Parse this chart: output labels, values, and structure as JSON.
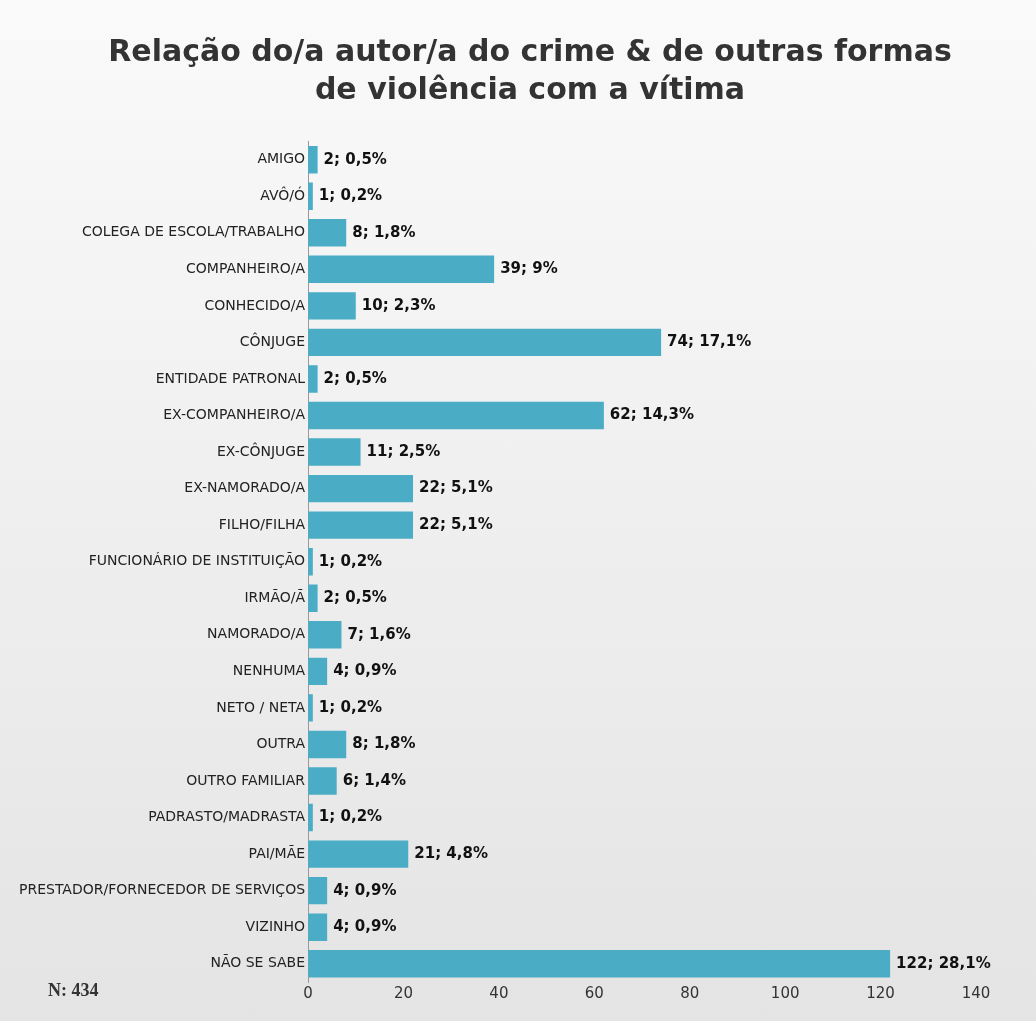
{
  "chart_data": {
    "type": "bar",
    "orientation": "horizontal",
    "title": "Relação do/a autor/a do crime & de outras formas de violência com a vítima",
    "categories": [
      "AMIGO",
      "AVÔ/Ó",
      "COLEGA DE ESCOLA/TRABALHO",
      "COMPANHEIRO/A",
      "CONHECIDO/A",
      "CÔNJUGE",
      "ENTIDADE PATRONAL",
      "EX-COMPANHEIRO/A",
      "EX-CÔNJUGE",
      "EX-NAMORADO/A",
      "FILHO/FILHA",
      "FUNCIONÁRIO DE INSTITUIÇÃO",
      "IRMÃO/Ã",
      "NAMORADO/A",
      "NENHUMA",
      "NETO / NETA",
      "OUTRA",
      "OUTRO FAMILIAR",
      "PADRASTO/MADRASTA",
      "PAI/MÃE",
      "PRESTADOR/FORNECEDOR DE SERVIÇOS",
      "VIZINHO",
      "NÃO SE SABE"
    ],
    "values": [
      2,
      1,
      8,
      39,
      10,
      74,
      2,
      62,
      11,
      22,
      22,
      1,
      2,
      7,
      4,
      1,
      8,
      6,
      1,
      21,
      4,
      4,
      122
    ],
    "value_labels": [
      "2; 0,5%",
      "1; 0,2%",
      "8; 1,8%",
      "39; 9%",
      "10; 2,3%",
      "74; 17,1%",
      "2; 0,5%",
      "62; 14,3%",
      "11; 2,5%",
      "22; 5,1%",
      "22; 5,1%",
      "1; 0,2%",
      "2; 0,5%",
      "7; 1,6%",
      "4; 0,9%",
      "1; 0,2%",
      "8; 1,8%",
      "6; 1,4%",
      "1; 0,2%",
      "21; 4,8%",
      "4; 0,9%",
      "4; 0,9%",
      "122; 28,1%"
    ],
    "color": "#4bacc6",
    "xlim": [
      0,
      140
    ],
    "xticks": [
      0,
      20,
      40,
      60,
      80,
      100,
      120,
      140
    ],
    "grid": false,
    "legend": false,
    "annotations": [
      "N: 434"
    ]
  }
}
